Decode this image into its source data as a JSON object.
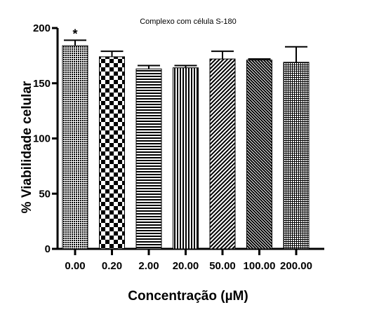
{
  "chart_data": {
    "type": "bar",
    "title": "Complexo com célula S-180",
    "xlabel": "Concentração (µM)",
    "ylabel": "% Viabilidade celular",
    "categories": [
      "0.00",
      "0.20",
      "2.00",
      "20.00",
      "50.00",
      "100.00",
      "200.00"
    ],
    "values": [
      184,
      174,
      163,
      164,
      172,
      171,
      169
    ],
    "errors": [
      5,
      5,
      3,
      2,
      7,
      1,
      14
    ],
    "annotations": [
      "*",
      "",
      "",
      "",
      "",
      "",
      ""
    ],
    "ylim": [
      0,
      200
    ],
    "yticks": [
      0,
      50,
      100,
      150,
      200
    ],
    "grid": false,
    "patterns": [
      "dots",
      "checker",
      "horizontal",
      "vertical",
      "diagonal",
      "diagonal-dense",
      "grid"
    ]
  }
}
